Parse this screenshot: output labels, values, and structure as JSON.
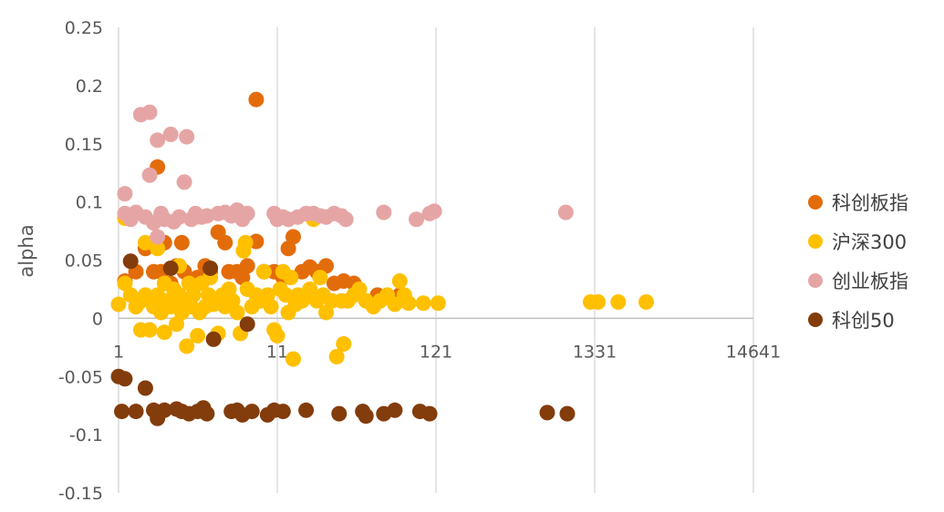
{
  "chart_data": {
    "type": "scatter",
    "xlabel": "",
    "ylabel": "alpha",
    "x_scale": "log11",
    "xlim": [
      1,
      14641
    ],
    "ylim": [
      -0.15,
      0.25
    ],
    "xticks": [
      1,
      11,
      121,
      1331,
      14641
    ],
    "xtick_labels": [
      "1",
      "11",
      "121",
      "1331",
      "14641"
    ],
    "yticks": [
      -0.15,
      -0.1,
      -0.05,
      0,
      0.05,
      0.1,
      0.15,
      0.2,
      0.25
    ],
    "ytick_labels": [
      "-0.15",
      "-0.1",
      "-0.05",
      "0",
      "0.05",
      "0.1",
      "0.15",
      "0.2",
      "0.25"
    ],
    "grid": "vertical-major",
    "legend_position": "right",
    "series": [
      {
        "name": "科创板指",
        "color": "#E36C0A",
        "points": [
          [
            1.1,
            0.032
          ],
          [
            1.3,
            0.04
          ],
          [
            1.5,
            0.06
          ],
          [
            1.7,
            0.04
          ],
          [
            1.8,
            0.13
          ],
          [
            1.9,
            0.04
          ],
          [
            2.0,
            0.065
          ],
          [
            2.2,
            0.03
          ],
          [
            2.4,
            0.045
          ],
          [
            2.6,
            0.065
          ],
          [
            2.7,
            0.04
          ],
          [
            3.0,
            0.03
          ],
          [
            3.3,
            0.035
          ],
          [
            3.7,
            0.045
          ],
          [
            4.0,
            0.04
          ],
          [
            4.5,
            0.074
          ],
          [
            5.0,
            0.065
          ],
          [
            5.3,
            0.04
          ],
          [
            6.0,
            0.04
          ],
          [
            6.5,
            0.035
          ],
          [
            7.0,
            0.045
          ],
          [
            8.0,
            0.066
          ],
          [
            8.0,
            0.188
          ],
          [
            9.0,
            0.04
          ],
          [
            10.5,
            0.04
          ],
          [
            12.0,
            0.035
          ],
          [
            13.0,
            0.06
          ],
          [
            14.0,
            0.07
          ],
          [
            16.0,
            0.04
          ],
          [
            18.0,
            0.044
          ],
          [
            20.0,
            0.04
          ],
          [
            23.0,
            0.045
          ],
          [
            26.0,
            0.03
          ],
          [
            30.0,
            0.032
          ],
          [
            35.0,
            0.03
          ],
          [
            50.0,
            0.02
          ],
          [
            70.0,
            0.02
          ]
        ]
      },
      {
        "name": "沪深300",
        "color": "#FFC000",
        "points": [
          [
            1.0,
            0.012
          ],
          [
            1.1,
            0.086
          ],
          [
            1.1,
            0.03
          ],
          [
            1.2,
            0.02
          ],
          [
            1.3,
            0.01
          ],
          [
            1.4,
            -0.01
          ],
          [
            1.4,
            0.015
          ],
          [
            1.5,
            0.065
          ],
          [
            1.5,
            0.02
          ],
          [
            1.6,
            -0.01
          ],
          [
            1.7,
            0.01
          ],
          [
            1.8,
            0.02
          ],
          [
            1.8,
            0.06
          ],
          [
            1.9,
            0.005
          ],
          [
            2.0,
            -0.012
          ],
          [
            2.0,
            0.03
          ],
          [
            2.1,
            0.015
          ],
          [
            2.2,
            0.01
          ],
          [
            2.3,
            0.025
          ],
          [
            2.4,
            -0.005
          ],
          [
            2.5,
            0.045
          ],
          [
            2.5,
            0.02
          ],
          [
            2.6,
            0.005
          ],
          [
            2.7,
            0.015
          ],
          [
            2.8,
            -0.024
          ],
          [
            2.9,
            0.03
          ],
          [
            3.0,
            0.01
          ],
          [
            3.1,
            0.02
          ],
          [
            3.2,
            0.087
          ],
          [
            3.3,
            -0.015
          ],
          [
            3.4,
            0.005
          ],
          [
            3.5,
            0.03
          ],
          [
            3.7,
            0.01
          ],
          [
            3.9,
            0.02
          ],
          [
            4.0,
            0.035
          ],
          [
            4.2,
            0.012
          ],
          [
            4.5,
            -0.013
          ],
          [
            4.8,
            0.02
          ],
          [
            5.0,
            0.01
          ],
          [
            5.3,
            0.025
          ],
          [
            5.6,
            0.015
          ],
          [
            6.0,
            0.005
          ],
          [
            6.3,
            -0.013
          ],
          [
            6.6,
            0.058
          ],
          [
            6.8,
            0.065
          ],
          [
            7.0,
            0.025
          ],
          [
            7.5,
            0.01
          ],
          [
            8.0,
            0.02
          ],
          [
            8.5,
            0.015
          ],
          [
            9.0,
            0.04
          ],
          [
            9.5,
            0.02
          ],
          [
            10.0,
            0.01
          ],
          [
            10.5,
            -0.01
          ],
          [
            11.0,
            -0.015
          ],
          [
            11.5,
            0.025
          ],
          [
            12.0,
            0.04
          ],
          [
            12.5,
            0.02
          ],
          [
            13.0,
            0.005
          ],
          [
            13.5,
            0.035
          ],
          [
            14.0,
            -0.035
          ],
          [
            14.5,
            0.012
          ],
          [
            15.0,
            0.02
          ],
          [
            16.0,
            0.015
          ],
          [
            17.0,
            0.02
          ],
          [
            18.0,
            0.025
          ],
          [
            19.0,
            0.085
          ],
          [
            20.0,
            0.015
          ],
          [
            21.0,
            0.035
          ],
          [
            22.0,
            0.02
          ],
          [
            23.0,
            0.005
          ],
          [
            25.0,
            0.015
          ],
          [
            27.0,
            -0.033
          ],
          [
            29.0,
            0.015
          ],
          [
            30.0,
            -0.022
          ],
          [
            32.0,
            0.015
          ],
          [
            35.0,
            0.02
          ],
          [
            38.0,
            0.025
          ],
          [
            42.0,
            0.015
          ],
          [
            47.0,
            0.01
          ],
          [
            52.0,
            0.015
          ],
          [
            58.0,
            0.02
          ],
          [
            65.0,
            0.012
          ],
          [
            70.0,
            0.032
          ],
          [
            75.0,
            0.02
          ],
          [
            80.0,
            0.013
          ],
          [
            100.0,
            0.013
          ],
          [
            125.0,
            0.013
          ],
          [
            1250.0,
            0.014
          ],
          [
            1400.0,
            0.014
          ],
          [
            1900.0,
            0.014
          ],
          [
            2900.0,
            0.014
          ]
        ]
      },
      {
        "name": "创业板指",
        "color": "#E6A5A5",
        "points": [
          [
            1.1,
            0.107
          ],
          [
            1.1,
            0.09
          ],
          [
            1.2,
            0.085
          ],
          [
            1.3,
            0.091
          ],
          [
            1.4,
            0.175
          ],
          [
            1.5,
            0.087
          ],
          [
            1.6,
            0.177
          ],
          [
            1.6,
            0.123
          ],
          [
            1.7,
            0.082
          ],
          [
            1.8,
            0.153
          ],
          [
            1.8,
            0.07
          ],
          [
            1.9,
            0.09
          ],
          [
            2.0,
            0.085
          ],
          [
            2.2,
            0.158
          ],
          [
            2.3,
            0.083
          ],
          [
            2.5,
            0.087
          ],
          [
            2.7,
            0.117
          ],
          [
            2.8,
            0.156
          ],
          [
            3.0,
            0.085
          ],
          [
            3.2,
            0.09
          ],
          [
            3.5,
            0.087
          ],
          [
            3.8,
            0.088
          ],
          [
            4.5,
            0.09
          ],
          [
            5.0,
            0.091
          ],
          [
            5.5,
            0.088
          ],
          [
            6.0,
            0.093
          ],
          [
            6.5,
            0.085
          ],
          [
            7.0,
            0.09
          ],
          [
            10.5,
            0.09
          ],
          [
            11.0,
            0.085
          ],
          [
            12.0,
            0.087
          ],
          [
            13.0,
            0.085
          ],
          [
            15.0,
            0.087
          ],
          [
            17.0,
            0.09
          ],
          [
            19.0,
            0.09
          ],
          [
            21.0,
            0.088
          ],
          [
            23.0,
            0.087
          ],
          [
            26.0,
            0.09
          ],
          [
            29.0,
            0.088
          ],
          [
            31.0,
            0.085
          ],
          [
            55.0,
            0.091
          ],
          [
            90.0,
            0.085
          ],
          [
            110.0,
            0.09
          ],
          [
            118.0,
            0.092
          ],
          [
            860.0,
            0.091
          ]
        ]
      },
      {
        "name": "科创50",
        "color": "#833C0B",
        "points": [
          [
            1.0,
            -0.05
          ],
          [
            1.05,
            -0.08
          ],
          [
            1.1,
            -0.052
          ],
          [
            1.2,
            0.049
          ],
          [
            1.3,
            -0.08
          ],
          [
            1.5,
            -0.06
          ],
          [
            1.7,
            -0.079
          ],
          [
            1.8,
            -0.086
          ],
          [
            2.0,
            -0.079
          ],
          [
            2.2,
            0.043
          ],
          [
            2.4,
            -0.078
          ],
          [
            2.6,
            -0.08
          ],
          [
            2.9,
            -0.082
          ],
          [
            3.3,
            -0.08
          ],
          [
            3.6,
            -0.077
          ],
          [
            3.8,
            -0.082
          ],
          [
            4.0,
            0.043
          ],
          [
            4.2,
            -0.018
          ],
          [
            5.5,
            -0.08
          ],
          [
            6.0,
            -0.079
          ],
          [
            6.5,
            -0.083
          ],
          [
            7.0,
            -0.005
          ],
          [
            7.5,
            -0.08
          ],
          [
            9.5,
            -0.083
          ],
          [
            10.5,
            -0.079
          ],
          [
            12.0,
            -0.08
          ],
          [
            17.0,
            -0.079
          ],
          [
            28.0,
            -0.082
          ],
          [
            40.0,
            -0.08
          ],
          [
            42.0,
            -0.084
          ],
          [
            55.0,
            -0.082
          ],
          [
            65.0,
            -0.079
          ],
          [
            95.0,
            -0.08
          ],
          [
            110.0,
            -0.082
          ],
          [
            650.0,
            -0.081
          ],
          [
            880.0,
            -0.082
          ]
        ]
      }
    ]
  }
}
